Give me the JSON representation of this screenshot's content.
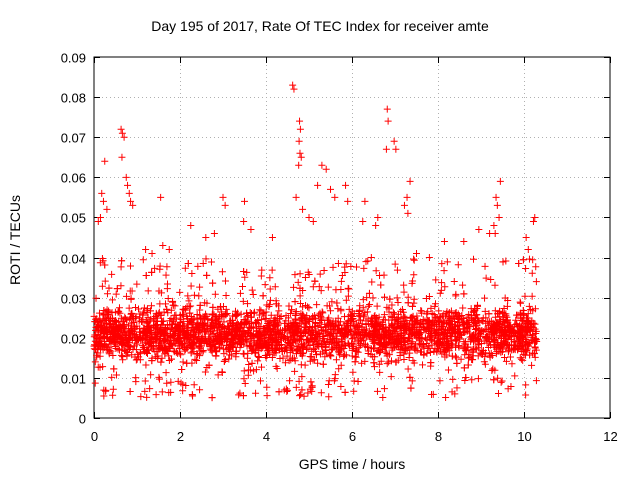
{
  "chart_data": {
    "type": "scatter",
    "title": "Day 195 of 2017, Rate Of TEC Index for receiver amte",
    "xlabel": "GPS time / hours",
    "ylabel": "ROTI / TECUs",
    "xlim": [
      0,
      12
    ],
    "ylim": [
      0,
      0.09
    ],
    "x_ticks": [
      "0",
      "2",
      "4",
      "6",
      "8",
      "10",
      "12"
    ],
    "y_ticks": [
      "0",
      "0.01",
      "0.02",
      "0.03",
      "0.04",
      "0.05",
      "0.06",
      "0.07",
      "0.08",
      "0.09"
    ],
    "x_tick_values": [
      0,
      2,
      4,
      6,
      8,
      10,
      12
    ],
    "y_tick_values": [
      0,
      0.01,
      0.02,
      0.03,
      0.04,
      0.05,
      0.06,
      0.07,
      0.08,
      0.09
    ],
    "grid": true,
    "marker": "+",
    "series_color": "#ff0000",
    "outlier_points": [
      [
        4.62,
        0.083
      ],
      [
        4.65,
        0.082
      ],
      [
        6.82,
        0.077
      ],
      [
        6.84,
        0.074
      ],
      [
        0.63,
        0.072
      ],
      [
        0.66,
        0.071
      ],
      [
        0.7,
        0.07
      ],
      [
        0.65,
        0.065
      ],
      [
        4.78,
        0.074
      ],
      [
        4.8,
        0.072
      ],
      [
        4.77,
        0.069
      ],
      [
        4.79,
        0.066
      ],
      [
        4.82,
        0.065
      ],
      [
        4.76,
        0.063
      ],
      [
        6.98,
        0.069
      ],
      [
        7.02,
        0.067
      ],
      [
        6.8,
        0.067
      ],
      [
        5.3,
        0.063
      ],
      [
        5.4,
        0.062
      ],
      [
        5.2,
        0.058
      ],
      [
        5.5,
        0.057
      ],
      [
        5.6,
        0.055
      ],
      [
        0.25,
        0.064
      ],
      [
        0.18,
        0.056
      ],
      [
        0.22,
        0.054
      ],
      [
        0.3,
        0.052
      ],
      [
        0.15,
        0.05
      ],
      [
        0.1,
        0.049
      ],
      [
        0.78,
        0.058
      ],
      [
        0.82,
        0.056
      ],
      [
        0.85,
        0.054
      ],
      [
        0.9,
        0.053
      ],
      [
        0.75,
        0.06
      ],
      [
        7.35,
        0.059
      ],
      [
        7.28,
        0.055
      ],
      [
        7.22,
        0.053
      ],
      [
        7.3,
        0.051
      ],
      [
        9.45,
        0.059
      ],
      [
        9.35,
        0.055
      ],
      [
        9.38,
        0.053
      ],
      [
        9.42,
        0.05
      ],
      [
        9.3,
        0.048
      ],
      [
        9.33,
        0.046
      ],
      [
        1.55,
        0.055
      ],
      [
        3.0,
        0.055
      ],
      [
        3.05,
        0.053
      ],
      [
        3.5,
        0.054
      ],
      [
        3.48,
        0.049
      ],
      [
        4.7,
        0.055
      ],
      [
        4.85,
        0.052
      ],
      [
        5.0,
        0.05
      ],
      [
        5.1,
        0.049
      ],
      [
        5.85,
        0.058
      ],
      [
        5.9,
        0.054
      ],
      [
        6.3,
        0.054
      ],
      [
        6.25,
        0.049
      ],
      [
        6.6,
        0.05
      ],
      [
        6.55,
        0.048
      ],
      [
        10.25,
        0.05
      ],
      [
        10.22,
        0.049
      ],
      [
        10.05,
        0.045
      ],
      [
        10.1,
        0.042
      ],
      [
        2.25,
        0.048
      ],
      [
        2.8,
        0.046
      ],
      [
        2.6,
        0.045
      ],
      [
        3.65,
        0.047
      ],
      [
        4.15,
        0.045
      ],
      [
        8.15,
        0.044
      ],
      [
        8.6,
        0.044
      ],
      [
        8.95,
        0.047
      ],
      [
        9.2,
        0.046
      ],
      [
        1.2,
        0.042
      ],
      [
        1.35,
        0.041
      ],
      [
        1.6,
        0.043
      ],
      [
        1.75,
        0.042
      ],
      [
        6.45,
        0.04
      ],
      [
        7.5,
        0.041
      ],
      [
        7.8,
        0.04
      ]
    ],
    "bulk": {
      "x_range": [
        0,
        10.3
      ],
      "y_core": [
        0.012,
        0.03
      ],
      "y_extent": [
        0.005,
        0.04
      ],
      "point_count": 3600
    }
  }
}
